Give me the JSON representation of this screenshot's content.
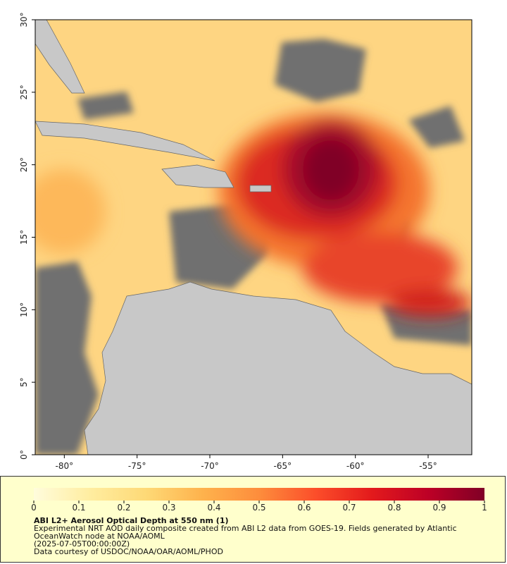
{
  "chart_data": {
    "type": "map",
    "xlim": [
      -82,
      -52
    ],
    "ylim": [
      0,
      30
    ],
    "xticks": [
      {
        "value": -80,
        "label": "-80°"
      },
      {
        "value": -75,
        "label": "-75°"
      },
      {
        "value": -70,
        "label": "-70°"
      },
      {
        "value": -65,
        "label": "-65°"
      },
      {
        "value": -60,
        "label": "-60°"
      },
      {
        "value": -55,
        "label": "-55°"
      }
    ],
    "yticks": [
      {
        "value": 0,
        "label": "0°"
      },
      {
        "value": 5,
        "label": "5°"
      },
      {
        "value": 10,
        "label": "10°"
      },
      {
        "value": 15,
        "label": "15°"
      },
      {
        "value": 20,
        "label": "20°"
      },
      {
        "value": 25,
        "label": "25°"
      },
      {
        "value": 30,
        "label": "30°"
      }
    ],
    "colorbar": {
      "label": "ABI L2+ Aerosol Optical Depth at 550 nm (1)",
      "lim": [
        0,
        1
      ],
      "ticks": [
        0,
        0.1,
        0.2,
        0.3,
        0.4,
        0.5,
        0.6,
        0.7,
        0.8,
        0.9,
        1
      ],
      "colors": [
        "#fffcdc",
        "#ffeda0",
        "#fed976",
        "#feb24c",
        "#fd8d3c",
        "#fc4e2a",
        "#e31a1c",
        "#bd0026",
        "#800026"
      ]
    },
    "caption_lines": [
      "Experimental NRT AOD daily composite created from ABI L2 data from GOES-19. Fields generated by Atlantic OceanWatch node at NOAA/AOML",
      "(2025-07-05T00:00:00Z)",
      "Data courtesy of USDOC/NOAA/OAR/AOML/PHOD"
    ]
  }
}
